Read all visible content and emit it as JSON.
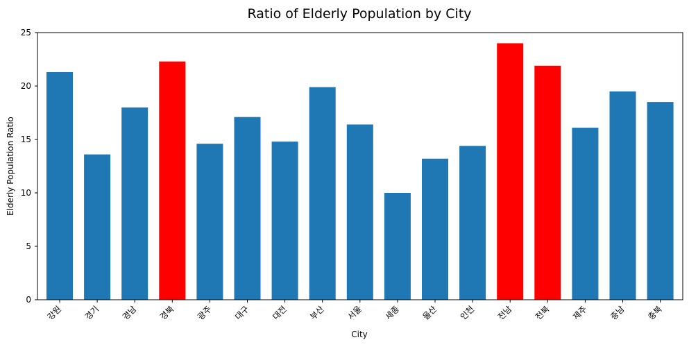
{
  "chart_data": {
    "type": "bar",
    "title": "Ratio of Elderly Population by City",
    "xlabel": "City",
    "ylabel": "Elderly Population Ratio",
    "ylim": [
      0,
      25
    ],
    "yticks": [
      0,
      5,
      10,
      15,
      20,
      25
    ],
    "grid": false,
    "legend": "none",
    "categories": [
      "강원",
      "경기",
      "경남",
      "경북",
      "광주",
      "대구",
      "대전",
      "부산",
      "서울",
      "세종",
      "울산",
      "인천",
      "전남",
      "전북",
      "제주",
      "충남",
      "충북"
    ],
    "values": [
      21.3,
      13.6,
      18.0,
      22.3,
      14.6,
      17.1,
      14.8,
      19.9,
      16.4,
      10.0,
      13.2,
      14.4,
      24.0,
      21.9,
      16.1,
      19.5,
      18.5
    ],
    "colors": {
      "default": "#1f77b4",
      "highlight": "#ff0000"
    },
    "highlighted": [
      "경북",
      "전남",
      "전북"
    ]
  }
}
